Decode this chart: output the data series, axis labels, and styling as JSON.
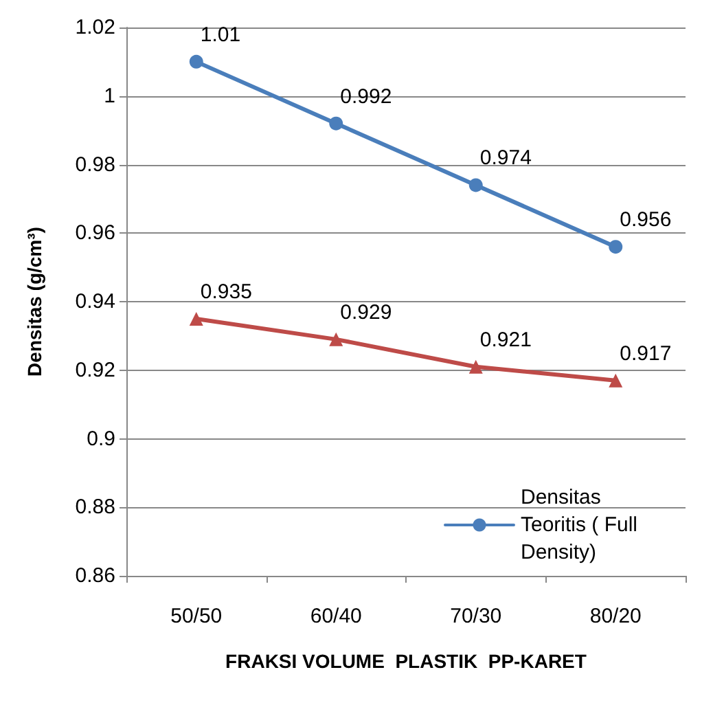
{
  "chart_data": {
    "type": "line",
    "xlabel": "FRAKSI VOLUME  PLASTIK  PP-KARET",
    "ylabel": "Densitas (g/cm³)",
    "categories": [
      "50/50",
      "60/40",
      "70/30",
      "80/20"
    ],
    "series": [
      {
        "name": "Densitas Teoritis ( Full Density)",
        "color": "#4a7ebb",
        "marker": "circle",
        "values": [
          1.01,
          0.992,
          0.974,
          0.956
        ]
      },
      {
        "color": "#be4b48",
        "marker": "triangle",
        "values": [
          0.935,
          0.929,
          0.921,
          0.917
        ]
      }
    ],
    "ylim": [
      0.86,
      1.02
    ],
    "yticks": [
      0.86,
      0.88,
      0.9,
      0.92,
      0.94,
      0.96,
      0.98,
      1,
      1.02
    ],
    "grid": "y",
    "legend": "bottom right",
    "data_labels": true,
    "line_style": "solid"
  }
}
